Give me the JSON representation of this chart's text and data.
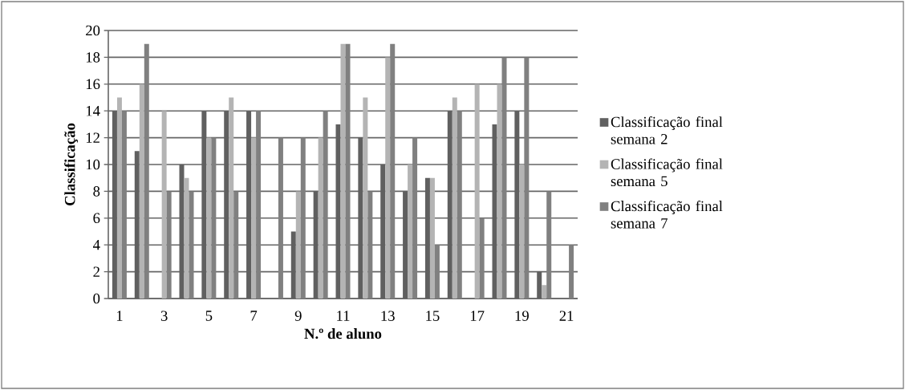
{
  "chart_data": {
    "type": "bar",
    "xlabel": "N.º de aluno",
    "ylabel": "Classificação",
    "categories": [
      "1",
      null,
      "3",
      null,
      "5",
      null,
      "7",
      null,
      "9",
      null,
      "11",
      null,
      "13",
      null,
      "15",
      null,
      "17",
      null,
      "19",
      null,
      "21"
    ],
    "series": [
      {
        "name": "Classificação final semana 2",
        "color": "#606060",
        "values": [
          14,
          11,
          0,
          10,
          14,
          14,
          14,
          0,
          5,
          8,
          13,
          12,
          10,
          8,
          9,
          14,
          0,
          13,
          14,
          2,
          0
        ]
      },
      {
        "name": "Classificação final semana 5",
        "color": "#b4b4b4",
        "values": [
          15,
          16,
          14,
          9,
          12,
          15,
          12,
          0,
          8,
          12,
          19,
          15,
          18,
          10,
          9,
          15,
          16,
          16,
          10,
          1,
          0
        ]
      },
      {
        "name": "Classificação final semana 7",
        "color": "#808080",
        "values": [
          14,
          19,
          8,
          8,
          12,
          8,
          14,
          12,
          12,
          14,
          19,
          8,
          19,
          12,
          4,
          14,
          6,
          18,
          18,
          8,
          4
        ]
      }
    ],
    "ylim": [
      0,
      20
    ],
    "yticks": [
      0,
      2,
      4,
      6,
      8,
      10,
      12,
      14,
      16,
      18,
      20
    ],
    "grid": "y",
    "legend": "right"
  }
}
